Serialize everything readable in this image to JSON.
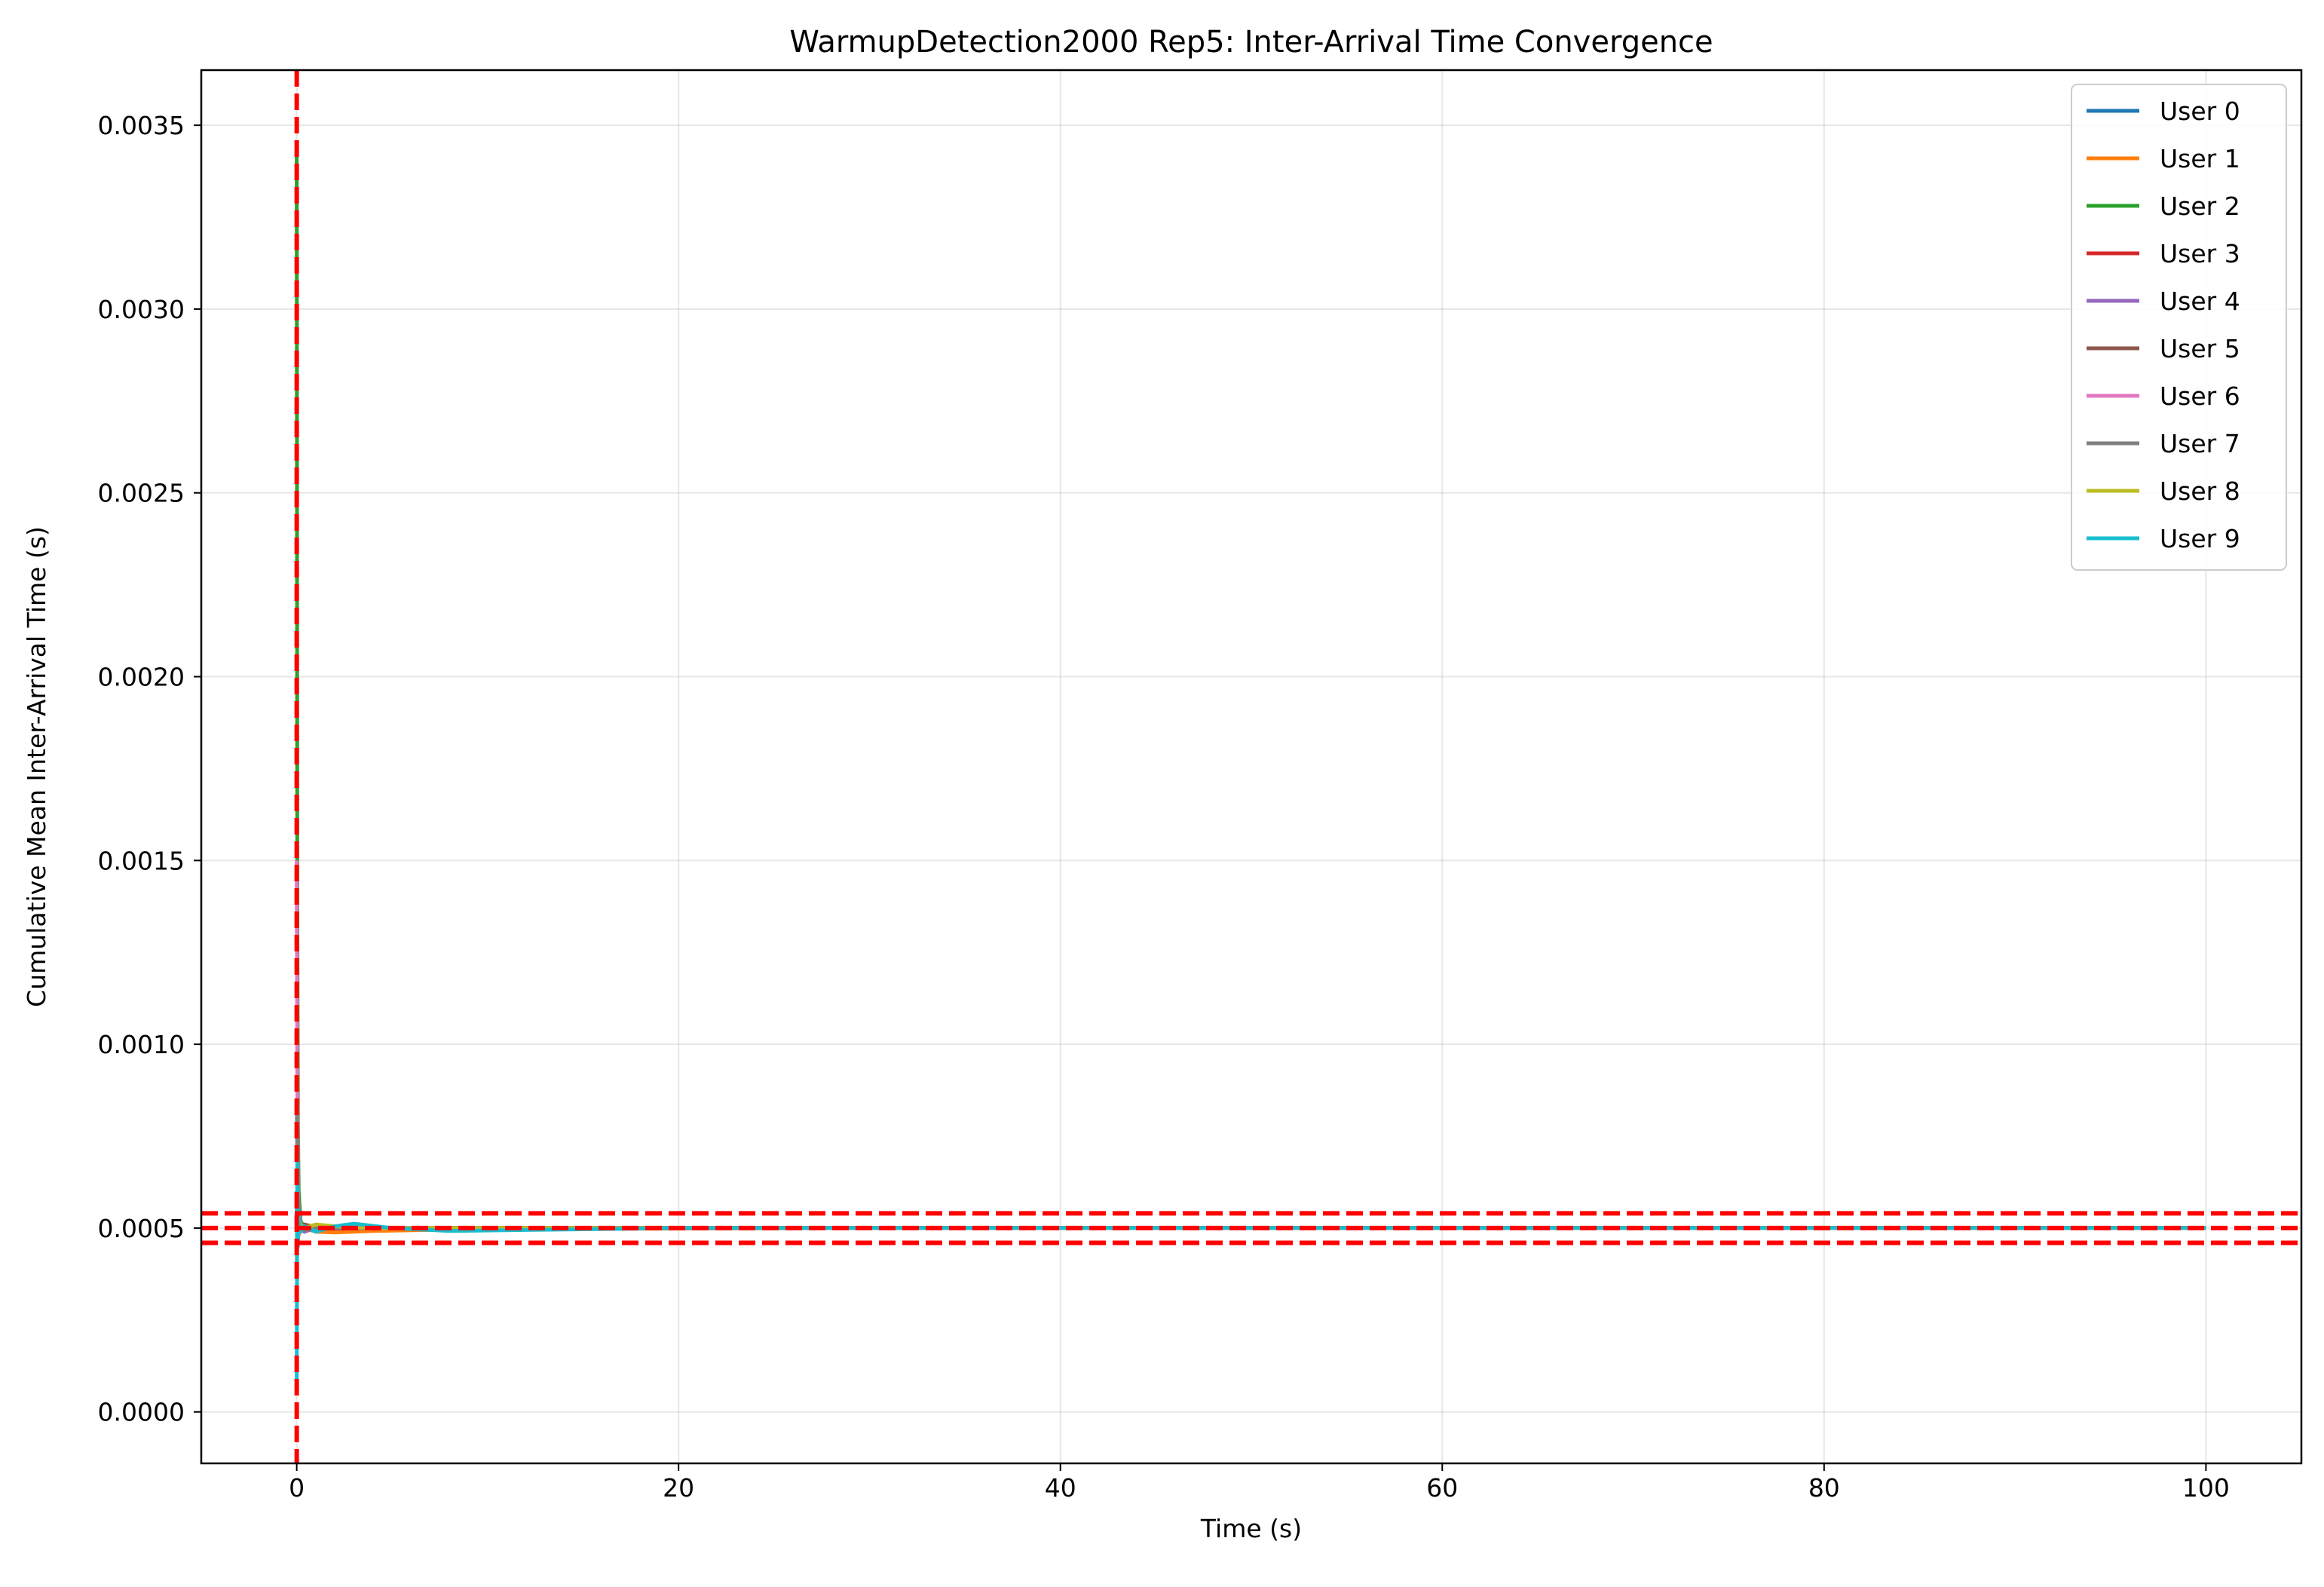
{
  "chart_data": {
    "type": "line",
    "title": "WarmupDetection2000 Rep5: Inter-Arrival Time Convergence",
    "xlabel": "Time (s)",
    "ylabel": "Cumulative Mean Inter-Arrival Time (s)",
    "xlim": [
      -5,
      105
    ],
    "ylim": [
      -0.00014,
      0.00365
    ],
    "xticks": [
      0,
      20,
      40,
      60,
      80,
      100
    ],
    "xtick_labels": [
      "0",
      "20",
      "40",
      "60",
      "80",
      "100"
    ],
    "yticks": [
      0.0,
      0.0005,
      0.001,
      0.0015,
      0.002,
      0.0025,
      0.003,
      0.0035
    ],
    "ytick_labels": [
      "0.0000",
      "0.0005",
      "0.0010",
      "0.0015",
      "0.0020",
      "0.0025",
      "0.0030",
      "0.0035"
    ],
    "grid": true,
    "legend_position": "top-right",
    "series": [
      {
        "name": "User 0",
        "color": "#1f77b4",
        "x": [
          0.0,
          0.05,
          0.1,
          0.2,
          0.4,
          1.0,
          2.0,
          4.0,
          8.0,
          15.0,
          30.0,
          50.0,
          75.0,
          100.0
        ],
        "y": [
          0.0006,
          0.00045,
          0.00052,
          0.0005,
          0.00049,
          0.000505,
          0.0005,
          0.000498,
          0.0005,
          0.0005,
          0.0005,
          0.0005,
          0.0005,
          0.0005
        ]
      },
      {
        "name": "User 1",
        "color": "#ff7f0e",
        "x": [
          0.0,
          0.05,
          0.1,
          0.2,
          0.4,
          1.0,
          2.0,
          4.0,
          8.0,
          15.0,
          30.0,
          50.0,
          75.0,
          100.0
        ],
        "y": [
          0.0004,
          0.00055,
          0.00048,
          0.00051,
          0.0005,
          0.00049,
          0.000488,
          0.000492,
          0.000496,
          0.000498,
          0.0005,
          0.0005,
          0.0005,
          0.0005
        ]
      },
      {
        "name": "User 2",
        "color": "#2ca02c",
        "x": [
          0.0,
          0.03,
          0.06,
          0.1,
          0.2,
          0.4,
          1.0,
          2.0,
          4.0,
          8.0,
          15.0,
          30.0,
          50.0,
          75.0,
          100.0
        ],
        "y": [
          0.00345,
          0.0014,
          0.0008,
          0.0006,
          0.00052,
          0.0005,
          0.000505,
          0.0005,
          0.0005,
          0.0005,
          0.0005,
          0.0005,
          0.0005,
          0.0005,
          0.0005
        ]
      },
      {
        "name": "User 3",
        "color": "#d62728",
        "x": [
          0.0,
          0.05,
          0.1,
          0.2,
          0.4,
          1.0,
          2.0,
          4.0,
          8.0,
          15.0,
          30.0,
          50.0,
          75.0,
          100.0
        ],
        "y": [
          0.0005,
          0.00047,
          0.00053,
          0.0005,
          0.000505,
          0.0005,
          0.000498,
          0.0005,
          0.0005,
          0.0005,
          0.0005,
          0.0005,
          0.0005,
          0.0005
        ]
      },
      {
        "name": "User 4",
        "color": "#9467bd",
        "x": [
          0.0,
          0.05,
          0.1,
          0.2,
          0.4,
          1.0,
          2.0,
          4.0,
          8.0,
          15.0,
          30.0,
          50.0,
          75.0,
          100.0
        ],
        "y": [
          0.00055,
          0.00049,
          0.00051,
          0.0005,
          0.00049,
          0.0005,
          0.000502,
          0.0005,
          0.0005,
          0.0005,
          0.0005,
          0.0005,
          0.0005,
          0.0005
        ]
      },
      {
        "name": "User 5",
        "color": "#8c564b",
        "x": [
          0.0,
          0.05,
          0.1,
          0.2,
          0.4,
          1.0,
          2.0,
          4.0,
          8.0,
          15.0,
          30.0,
          50.0,
          75.0,
          100.0
        ],
        "y": [
          0.00045,
          0.00052,
          0.0005,
          0.00049,
          0.00051,
          0.000502,
          0.0005,
          0.0005,
          0.0005,
          0.0005,
          0.0005,
          0.0005,
          0.0005,
          0.0005
        ]
      },
      {
        "name": "User 6",
        "color": "#e377c2",
        "x": [
          0.0,
          0.03,
          0.06,
          0.1,
          0.2,
          0.4,
          1.0,
          2.0,
          4.0,
          8.0,
          15.0,
          30.0,
          50.0,
          75.0,
          100.0
        ],
        "y": [
          0.0015,
          0.0009,
          0.0006,
          0.00054,
          0.00051,
          0.0005,
          0.0005,
          0.0005,
          0.0005,
          0.0005,
          0.0005,
          0.0005,
          0.0005,
          0.0005,
          0.0005
        ]
      },
      {
        "name": "User 7",
        "color": "#7f7f7f",
        "x": [
          0.0,
          0.05,
          0.1,
          0.2,
          0.4,
          1.0,
          2.0,
          4.0,
          8.0,
          15.0,
          30.0,
          50.0,
          75.0,
          100.0
        ],
        "y": [
          0.00085,
          0.0006,
          0.00053,
          0.0005,
          0.000495,
          0.0005,
          0.0005,
          0.0005,
          0.0005,
          0.0005,
          0.0005,
          0.0005,
          0.0005,
          0.0005
        ]
      },
      {
        "name": "User 8",
        "color": "#bcbd22",
        "x": [
          0.0,
          0.05,
          0.1,
          0.2,
          0.4,
          1.0,
          2.0,
          4.0,
          8.0,
          15.0,
          30.0,
          50.0,
          75.0,
          100.0
        ],
        "y": [
          0.0005,
          0.00048,
          0.00052,
          0.00051,
          0.0005,
          0.00051,
          0.000505,
          0.0005,
          0.0005,
          0.0005,
          0.0005,
          0.0005,
          0.0005,
          0.0005
        ]
      },
      {
        "name": "User 9",
        "color": "#17becf",
        "x": [
          0.0,
          0.03,
          0.06,
          0.1,
          0.2,
          0.4,
          1.0,
          2.0,
          3.0,
          5.0,
          8.0,
          12.0,
          20.0,
          35.0,
          60.0,
          100.0
        ],
        "y": [
          5e-05,
          0.0007,
          0.00045,
          0.00053,
          0.00049,
          0.000505,
          0.00049,
          0.000505,
          0.000512,
          0.0005,
          0.000492,
          0.000495,
          0.0005,
          0.0005,
          0.0005,
          0.0005
        ]
      }
    ],
    "reference_lines": {
      "color": "#ff0000",
      "style": "dashed",
      "vertical_x": [
        0.0
      ],
      "horizontal_y": [
        0.00046,
        0.0005,
        0.00054
      ]
    }
  }
}
